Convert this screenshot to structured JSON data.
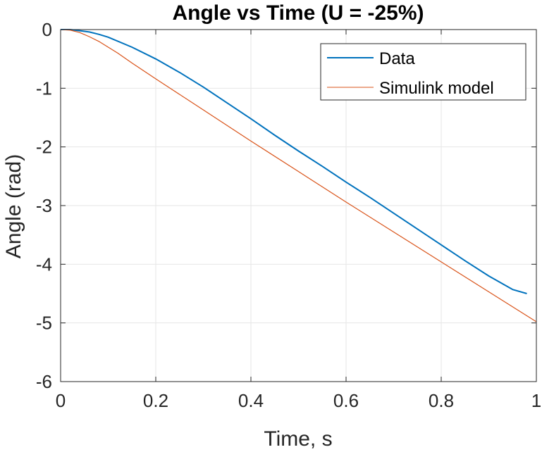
{
  "chart_data": {
    "type": "line",
    "title": "Angle vs Time (U = -25%)",
    "xlabel": "Time, s",
    "ylabel": "Angle (rad)",
    "xlim": [
      0,
      1
    ],
    "ylim": [
      -6,
      0
    ],
    "grid": true,
    "legend_position": "top-right",
    "x_ticks": [
      "0",
      "0.2",
      "0.4",
      "0.6",
      "0.8",
      "1"
    ],
    "y_ticks": [
      "0",
      "-1",
      "-2",
      "-3",
      "-4",
      "-5",
      "-6"
    ],
    "x_tick_values": [
      0,
      0.2,
      0.4,
      0.6,
      0.8,
      1
    ],
    "y_tick_values": [
      0,
      -1,
      -2,
      -3,
      -4,
      -5,
      -6
    ],
    "series": [
      {
        "name": "Data",
        "color": "#0072BD",
        "x": [
          0,
          0.02,
          0.04,
          0.06,
          0.08,
          0.1,
          0.15,
          0.2,
          0.25,
          0.3,
          0.35,
          0.4,
          0.45,
          0.5,
          0.55,
          0.6,
          0.65,
          0.7,
          0.75,
          0.8,
          0.85,
          0.9,
          0.95,
          0.98
        ],
        "y": [
          0,
          0,
          -0.02,
          -0.04,
          -0.08,
          -0.13,
          -0.3,
          -0.5,
          -0.73,
          -0.98,
          -1.25,
          -1.52,
          -1.8,
          -2.07,
          -2.33,
          -2.6,
          -2.86,
          -3.13,
          -3.4,
          -3.67,
          -3.94,
          -4.2,
          -4.43,
          -4.5
        ]
      },
      {
        "name": "Simulink model",
        "color": "#D95319",
        "x": [
          0,
          0.02,
          0.04,
          0.06,
          0.08,
          0.1,
          0.12,
          0.15,
          0.2,
          0.3,
          0.4,
          0.5,
          0.6,
          0.7,
          0.8,
          0.9,
          1.0
        ],
        "y": [
          0,
          -0.01,
          -0.05,
          -0.12,
          -0.2,
          -0.3,
          -0.4,
          -0.57,
          -0.84,
          -1.37,
          -1.9,
          -2.42,
          -2.94,
          -3.45,
          -3.96,
          -4.47,
          -4.98
        ]
      }
    ]
  }
}
